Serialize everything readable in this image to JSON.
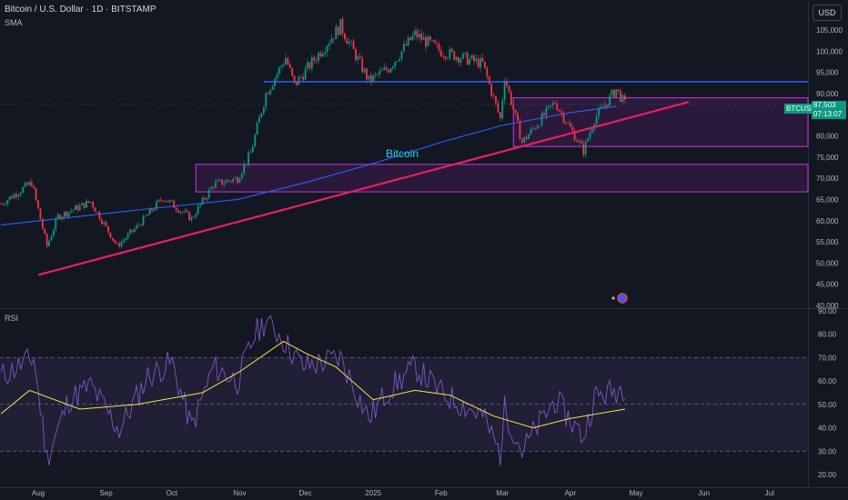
{
  "header": {
    "title": "Bitcoin / U.S. Dollar · 1D · BITSTAMP",
    "sma_label": "SMA",
    "rsi_label": "RSI",
    "currency": "USD"
  },
  "price_label": {
    "ticker": "BTCUSD",
    "price": "87,503",
    "countdown": "07:13:07"
  },
  "annotation": "Bitcoin",
  "colors": {
    "background": "#131722",
    "up": "#089981",
    "down": "#f23645",
    "sma": "#2962ff",
    "trendline": "#e91e63",
    "resistance": "#2962ff",
    "zone": "#9c27b0",
    "rsi": "#7e57c2",
    "rsi_ma": "#f7e64a"
  },
  "chart_data": [
    {
      "type": "candlestick",
      "title": "Bitcoin / U.S. Dollar · 1D · BITSTAMP",
      "y_ticks": [
        40000,
        45000,
        50000,
        55000,
        60000,
        65000,
        70000,
        75000,
        80000,
        85000,
        90000,
        95000,
        100000,
        105000
      ],
      "y_tick_labels": [
        "40,000",
        "45,000",
        "50,000",
        "55,000",
        "60,000",
        "65,000",
        "70,000",
        "75,000",
        "80,000",
        "85,000",
        "90,000",
        "95,000",
        "100,000",
        "105,000"
      ],
      "ylim": [
        39000,
        110000
      ],
      "x_labels": [
        "Aug",
        "Sep",
        "Oct",
        "Nov",
        "Dec",
        "2025",
        "Feb",
        "Mar",
        "Apr",
        "May",
        "Jun",
        "Jul"
      ],
      "x_label_dates": [
        "2024-08-01",
        "2024-09-01",
        "2024-10-01",
        "2024-11-01",
        "2024-12-01",
        "2025-01-01",
        "2025-02-01",
        "2025-03-01",
        "2025-04-01",
        "2025-05-01",
        "2025-06-01",
        "2025-07-01"
      ],
      "price_path": [
        [
          "2024-07-15",
          64000
        ],
        [
          "2024-07-29",
          69000
        ],
        [
          "2024-08-05",
          54000
        ],
        [
          "2024-08-10",
          61000
        ],
        [
          "2024-08-25",
          64500
        ],
        [
          "2024-09-06",
          54000
        ],
        [
          "2024-09-15",
          58500
        ],
        [
          "2024-09-27",
          65500
        ],
        [
          "2024-10-10",
          60500
        ],
        [
          "2024-10-20",
          68500
        ],
        [
          "2024-10-31",
          70000
        ],
        [
          "2024-11-06",
          76000
        ],
        [
          "2024-11-13",
          90000
        ],
        [
          "2024-11-22",
          98500
        ],
        [
          "2024-11-26",
          92000
        ],
        [
          "2024-12-05",
          98000
        ],
        [
          "2024-12-17",
          106000
        ],
        [
          "2024-12-30",
          93000
        ],
        [
          "2025-01-08",
          96000
        ],
        [
          "2025-01-20",
          104000
        ],
        [
          "2025-02-01",
          100000
        ],
        [
          "2025-02-20",
          97000
        ],
        [
          "2025-02-28",
          84000
        ],
        [
          "2025-03-02",
          94000
        ],
        [
          "2025-03-10",
          78500
        ],
        [
          "2025-03-25",
          88000
        ],
        [
          "2025-04-07",
          76500
        ],
        [
          "2025-04-12",
          84000
        ],
        [
          "2025-04-22",
          91000
        ],
        [
          "2025-04-26",
          87503
        ]
      ],
      "sma": [
        [
          "2024-07-15",
          59000
        ],
        [
          "2024-09-15",
          62500
        ],
        [
          "2024-10-31",
          65000
        ],
        [
          "2024-12-01",
          69000
        ],
        [
          "2025-01-01",
          73500
        ],
        [
          "2025-02-01",
          78500
        ],
        [
          "2025-03-01",
          82500
        ],
        [
          "2025-04-01",
          85500
        ],
        [
          "2025-04-22",
          87000
        ]
      ],
      "horizontal_line": {
        "price": 92800,
        "from": "2024-11-12",
        "to": "2025-07-31"
      },
      "trendline": {
        "from": [
          "2024-08-01",
          47200
        ],
        "to": [
          "2025-05-25",
          88000
        ]
      },
      "zones": [
        {
          "from": "2024-10-12",
          "to": "2025-07-31",
          "top": 73300,
          "bottom": 66800
        },
        {
          "from": "2025-03-06",
          "to": "2025-07-31",
          "top": 89000,
          "bottom": 77500
        }
      ],
      "last_price": 87503
    },
    {
      "type": "line",
      "title": "RSI",
      "y_ticks": [
        20,
        30,
        40,
        50,
        60,
        70,
        80,
        90
      ],
      "y_tick_labels": [
        "20.00",
        "30.00",
        "40.00",
        "50.00",
        "60.00",
        "70.00",
        "80.00",
        "90.00"
      ],
      "ylim": [
        18,
        92
      ],
      "bands": [
        30,
        50,
        70
      ],
      "series": [
        {
          "key": "rsi",
          "points": [
            [
              "2024-07-15",
              62
            ],
            [
              "2024-07-30",
              70
            ],
            [
              "2024-08-05",
              27
            ],
            [
              "2024-08-15",
              52
            ],
            [
              "2024-08-25",
              58
            ],
            [
              "2024-09-07",
              39
            ],
            [
              "2024-09-20",
              62
            ],
            [
              "2024-10-01",
              68
            ],
            [
              "2024-10-10",
              40
            ],
            [
              "2024-10-20",
              66
            ],
            [
              "2024-10-31",
              60
            ],
            [
              "2024-11-08",
              80
            ],
            [
              "2024-11-13",
              86
            ],
            [
              "2024-11-20",
              79
            ],
            [
              "2024-11-30",
              66
            ],
            [
              "2024-12-17",
              70
            ],
            [
              "2024-12-30",
              44
            ],
            [
              "2025-01-08",
              56
            ],
            [
              "2025-01-20",
              66
            ],
            [
              "2025-02-01",
              55
            ],
            [
              "2025-02-20",
              45
            ],
            [
              "2025-02-28",
              29
            ],
            [
              "2025-03-02",
              48
            ],
            [
              "2025-03-10",
              30
            ],
            [
              "2025-03-25",
              52
            ],
            [
              "2025-04-07",
              36
            ],
            [
              "2025-04-12",
              53
            ],
            [
              "2025-04-22",
              56
            ],
            [
              "2025-04-26",
              58
            ]
          ]
        },
        {
          "key": "rsi_ma",
          "points": [
            [
              "2024-07-15",
              46
            ],
            [
              "2024-07-28",
              56
            ],
            [
              "2024-08-20",
              48
            ],
            [
              "2024-09-15",
              50
            ],
            [
              "2024-10-15",
              55
            ],
            [
              "2024-11-01",
              64
            ],
            [
              "2024-11-21",
              77
            ],
            [
              "2024-12-01",
              72
            ],
            [
              "2024-12-15",
              66
            ],
            [
              "2025-01-01",
              52
            ],
            [
              "2025-01-20",
              56
            ],
            [
              "2025-02-05",
              54
            ],
            [
              "2025-02-25",
              45
            ],
            [
              "2025-03-15",
              40
            ],
            [
              "2025-04-01",
              44
            ],
            [
              "2025-04-26",
              48
            ]
          ]
        }
      ]
    }
  ]
}
